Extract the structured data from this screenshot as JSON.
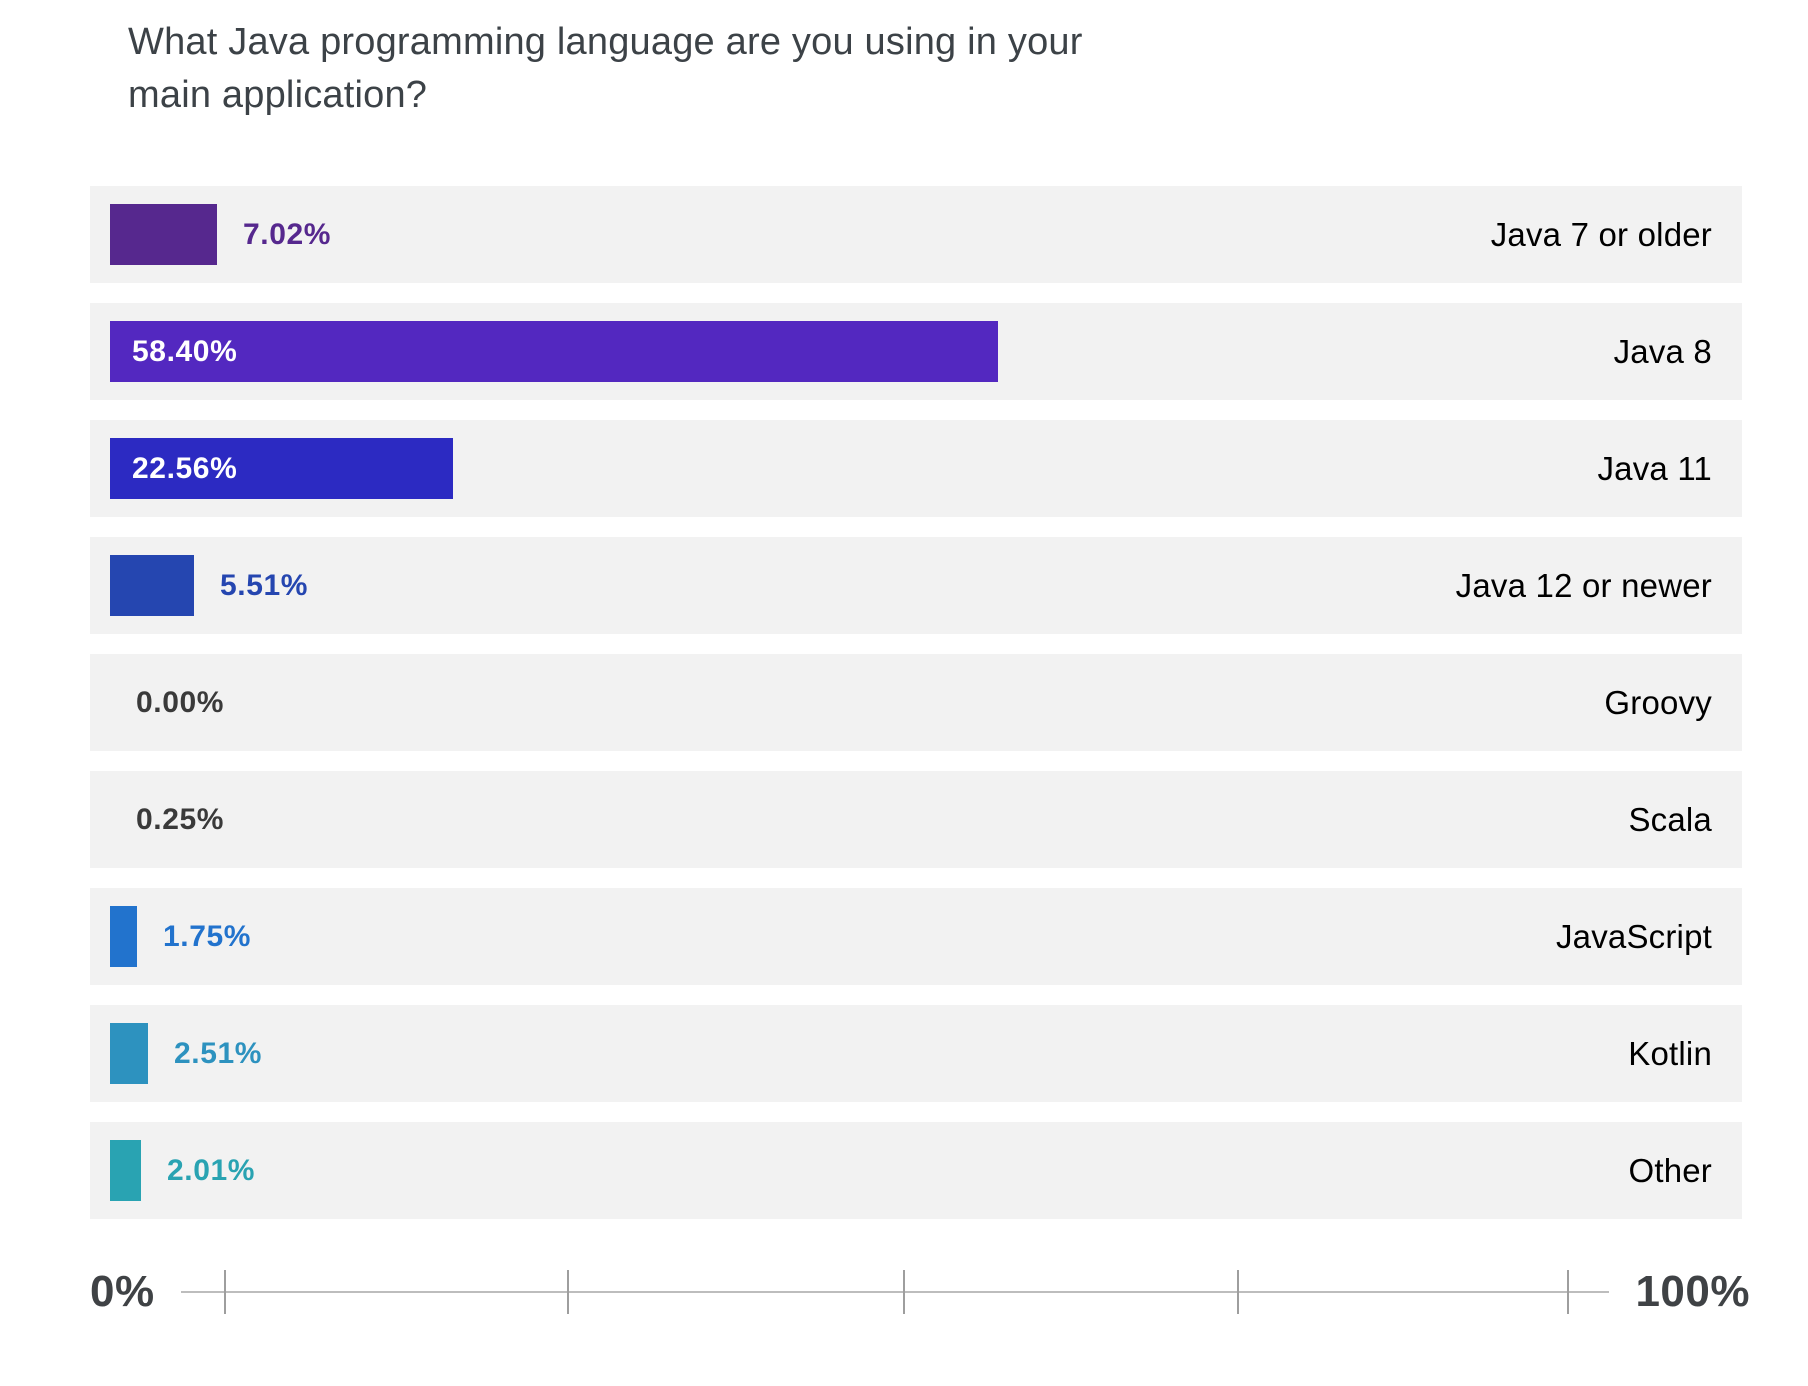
{
  "header": {
    "line1": "What Java programming language are you using in your",
    "line2": "main application?"
  },
  "chart_data": {
    "type": "bar",
    "orientation": "horizontal",
    "title": "What Java programming language are you using in your main application?",
    "xlabel": "",
    "ylabel": "",
    "xlim": [
      0,
      100
    ],
    "grid": false,
    "axis": {
      "min_label": "0%",
      "max_label": "100%",
      "ticks_pct": [
        0,
        25,
        50,
        75,
        100
      ]
    },
    "rows": [
      {
        "label": "Java 7 or older",
        "value": 7.02,
        "value_label": "7.02%",
        "bar_color": "#56288E",
        "value_color": "#56288E"
      },
      {
        "label": "Java 8",
        "value": 58.4,
        "value_label": "58.40%",
        "bar_color": "#5328C0",
        "value_color": "#FFFFFF"
      },
      {
        "label": "Java 11",
        "value": 22.56,
        "value_label": "22.56%",
        "bar_color": "#2C2AC2",
        "value_color": "#FFFFFF"
      },
      {
        "label": "Java 12 or newer",
        "value": 5.51,
        "value_label": "5.51%",
        "bar_color": "#2546B0",
        "value_color": "#2546B0"
      },
      {
        "label": "Groovy",
        "value": 0.0,
        "value_label": "0.00%",
        "bar_color": null,
        "value_color": "#3A3A3A"
      },
      {
        "label": "Scala",
        "value": 0.25,
        "value_label": "0.25%",
        "bar_color": null,
        "value_color": "#3A3A3A"
      },
      {
        "label": "JavaScript",
        "value": 1.75,
        "value_label": "1.75%",
        "bar_color": "#2273CD",
        "value_color": "#2273CD"
      },
      {
        "label": "Kotlin",
        "value": 2.51,
        "value_label": "2.51%",
        "bar_color": "#2D92BF",
        "value_color": "#2D92BF"
      },
      {
        "label": "Other",
        "value": 2.01,
        "value_label": "2.01%",
        "bar_color": "#29A3B2",
        "value_color": "#29A3B2"
      }
    ]
  },
  "colors": {
    "row_background": "#F2F2F2",
    "axis_line": "#BDBDBD",
    "axis_tick": "#9E9E9E",
    "title_text": "#3C4247",
    "category_text": "#000000"
  }
}
